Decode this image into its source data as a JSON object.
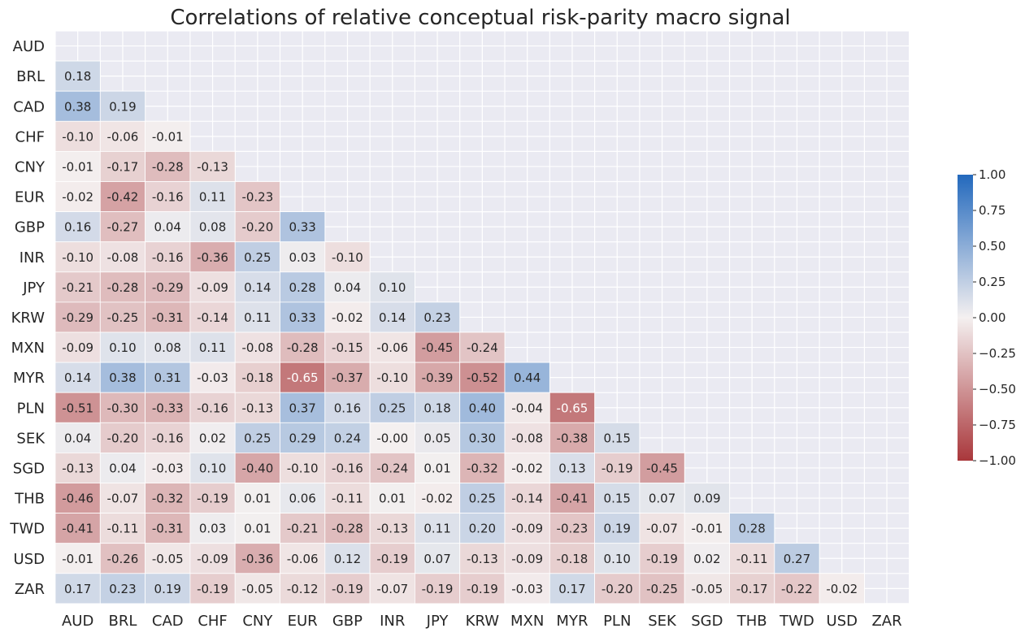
{
  "chart_data": {
    "type": "heatmap",
    "title": "Correlations of relative conceptual risk-parity macro signal",
    "labels": [
      "AUD",
      "BRL",
      "CAD",
      "CHF",
      "CNY",
      "EUR",
      "GBP",
      "INR",
      "JPY",
      "KRW",
      "MXN",
      "MYR",
      "PLN",
      "SEK",
      "SGD",
      "THB",
      "TWD",
      "USD",
      "ZAR"
    ],
    "lower_triangle": [
      [],
      [
        "0.18"
      ],
      [
        "0.38",
        "0.19"
      ],
      [
        "-0.10",
        "-0.06",
        "-0.01"
      ],
      [
        "-0.01",
        "-0.17",
        "-0.28",
        "-0.13"
      ],
      [
        "-0.02",
        "-0.42",
        "-0.16",
        "0.11",
        "-0.23"
      ],
      [
        "0.16",
        "-0.27",
        "0.04",
        "0.08",
        "-0.20",
        "0.33"
      ],
      [
        "-0.10",
        "-0.08",
        "-0.16",
        "-0.36",
        "0.25",
        "0.03",
        "-0.10"
      ],
      [
        "-0.21",
        "-0.28",
        "-0.29",
        "-0.09",
        "0.14",
        "0.28",
        "0.04",
        "0.10"
      ],
      [
        "-0.29",
        "-0.25",
        "-0.31",
        "-0.14",
        "0.11",
        "0.33",
        "-0.02",
        "0.14",
        "0.23"
      ],
      [
        "-0.09",
        "0.10",
        "0.08",
        "0.11",
        "-0.08",
        "-0.28",
        "-0.15",
        "-0.06",
        "-0.45",
        "-0.24"
      ],
      [
        "0.14",
        "0.38",
        "0.31",
        "-0.03",
        "-0.18",
        "-0.65",
        "-0.37",
        "-0.10",
        "-0.39",
        "-0.52",
        "0.44"
      ],
      [
        "-0.51",
        "-0.30",
        "-0.33",
        "-0.16",
        "-0.13",
        "0.37",
        "0.16",
        "0.25",
        "0.18",
        "0.40",
        "-0.04",
        "-0.65"
      ],
      [
        "0.04",
        "-0.20",
        "-0.16",
        "0.02",
        "0.25",
        "0.29",
        "0.24",
        "-0.00",
        "0.05",
        "0.30",
        "-0.08",
        "-0.38",
        "0.15"
      ],
      [
        "-0.13",
        "0.04",
        "-0.03",
        "0.10",
        "-0.40",
        "-0.10",
        "-0.16",
        "-0.24",
        "0.01",
        "-0.32",
        "-0.02",
        "0.13",
        "-0.19",
        "-0.45"
      ],
      [
        "-0.46",
        "-0.07",
        "-0.32",
        "-0.19",
        "0.01",
        "0.06",
        "-0.11",
        "0.01",
        "-0.02",
        "0.25",
        "-0.14",
        "-0.41",
        "0.15",
        "0.07",
        "0.09"
      ],
      [
        "-0.41",
        "-0.11",
        "-0.31",
        "0.03",
        "0.01",
        "-0.21",
        "-0.28",
        "-0.13",
        "0.11",
        "0.20",
        "-0.09",
        "-0.23",
        "0.19",
        "-0.07",
        "-0.01",
        "0.28"
      ],
      [
        "-0.01",
        "-0.26",
        "-0.05",
        "-0.09",
        "-0.36",
        "-0.06",
        "0.12",
        "-0.19",
        "0.07",
        "-0.13",
        "-0.09",
        "-0.18",
        "0.10",
        "-0.19",
        "0.02",
        "-0.11",
        "0.27"
      ],
      [
        "0.17",
        "0.23",
        "0.19",
        "-0.19",
        "-0.05",
        "-0.12",
        "-0.19",
        "-0.07",
        "-0.19",
        "-0.19",
        "-0.03",
        "0.17",
        "-0.20",
        "-0.25",
        "-0.05",
        "-0.17",
        "-0.22",
        "-0.02"
      ]
    ],
    "colorbar": {
      "range": [
        -1.0,
        1.0
      ],
      "ticks": [
        "1.00",
        "0.75",
        "0.50",
        "0.25",
        "0.00",
        "−0.25",
        "−0.50",
        "−0.75",
        "−1.00"
      ],
      "colormap": "vlag"
    },
    "colors": {
      "negative": "#a9373b",
      "neutral": "#f4f0f0",
      "positive": "#2369bd",
      "background": "#eaeaf2"
    },
    "grid": true
  }
}
